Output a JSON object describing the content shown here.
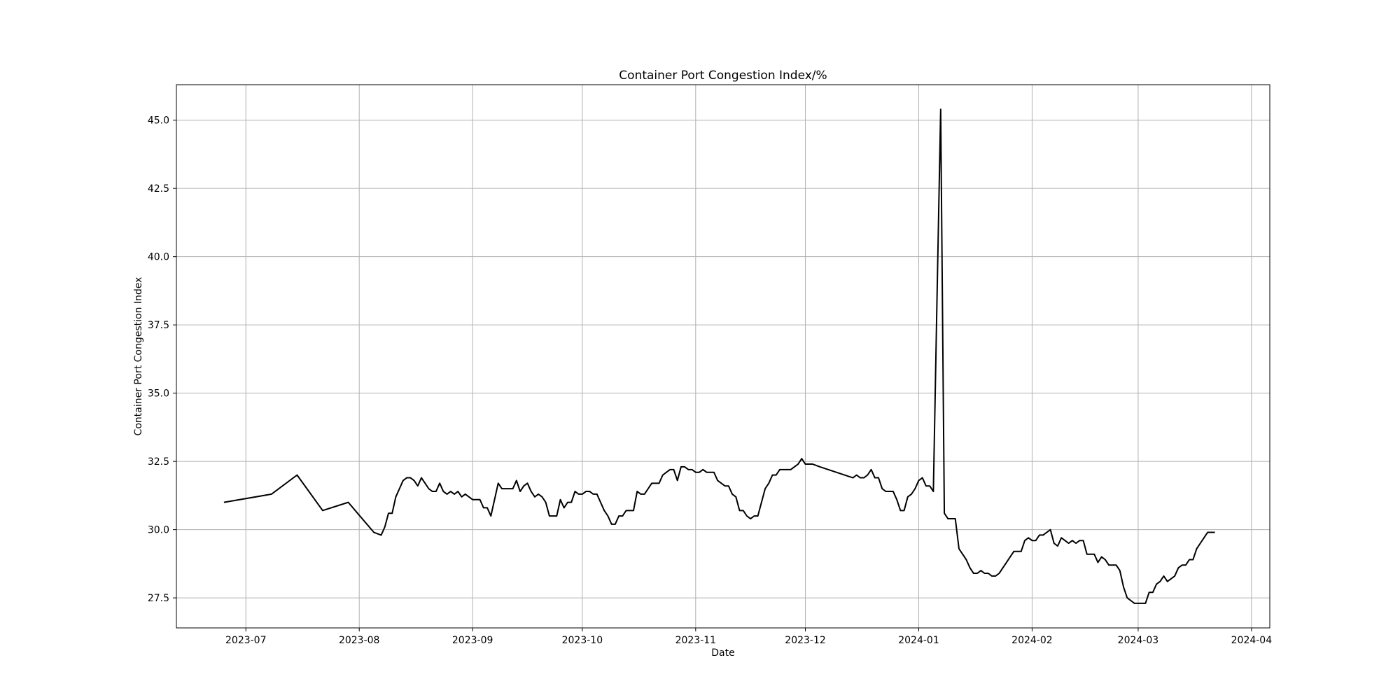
{
  "chart_data": {
    "type": "line",
    "title": "Container Port Congestion Index/%",
    "xlabel": "Date",
    "ylabel": "Container Port Congestion Index",
    "grid": true,
    "xlim": [
      "2023-06-12",
      "2024-04-06"
    ],
    "ylim": [
      26.4,
      46.3
    ],
    "x_ticks": [
      "2023-07",
      "2023-08",
      "2023-09",
      "2023-10",
      "2023-11",
      "2023-12",
      "2024-01",
      "2024-02",
      "2024-03",
      "2024-04"
    ],
    "y_ticks": [
      "27.5",
      "30.0",
      "32.5",
      "35.0",
      "37.5",
      "40.0",
      "42.5",
      "45.0"
    ],
    "line_color": "#000000",
    "series": [
      {
        "x": [
          "2023-06-25",
          "2023-07-08",
          "2023-07-15",
          "2023-07-22",
          "2023-07-29",
          "2023-08-05",
          "2023-08-07",
          "2023-08-08",
          "2023-08-09",
          "2023-08-10",
          "2023-08-11",
          "2023-08-12",
          "2023-08-13",
          "2023-08-14",
          "2023-08-15",
          "2023-08-16",
          "2023-08-17",
          "2023-08-18",
          "2023-08-19",
          "2023-08-20",
          "2023-08-21",
          "2023-08-22",
          "2023-08-23",
          "2023-08-24",
          "2023-08-25",
          "2023-08-26",
          "2023-08-27",
          "2023-08-28",
          "2023-08-29",
          "2023-08-30",
          "2023-08-31",
          "2023-09-01",
          "2023-09-02",
          "2023-09-03",
          "2023-09-04",
          "2023-09-05",
          "2023-09-06",
          "2023-09-07",
          "2023-09-08",
          "2023-09-09",
          "2023-09-10",
          "2023-09-11",
          "2023-09-12",
          "2023-09-13",
          "2023-09-14",
          "2023-09-15",
          "2023-09-16",
          "2023-09-17",
          "2023-09-18",
          "2023-09-19",
          "2023-09-20",
          "2023-09-21",
          "2023-09-22",
          "2023-09-23",
          "2023-09-24",
          "2023-09-25",
          "2023-09-26",
          "2023-09-27",
          "2023-09-28",
          "2023-09-29",
          "2023-09-30",
          "2023-10-01",
          "2023-10-02",
          "2023-10-03",
          "2023-10-04",
          "2023-10-05",
          "2023-10-06",
          "2023-10-07",
          "2023-10-08",
          "2023-10-09",
          "2023-10-10",
          "2023-10-11",
          "2023-10-12",
          "2023-10-13",
          "2023-10-14",
          "2023-10-15",
          "2023-10-16",
          "2023-10-17",
          "2023-10-18",
          "2023-10-19",
          "2023-10-20",
          "2023-10-21",
          "2023-10-22",
          "2023-10-23",
          "2023-10-24",
          "2023-10-25",
          "2023-10-26",
          "2023-10-27",
          "2023-10-28",
          "2023-10-29",
          "2023-10-30",
          "2023-10-31",
          "2023-11-01",
          "2023-11-02",
          "2023-11-03",
          "2023-11-04",
          "2023-11-05",
          "2023-11-06",
          "2023-11-07",
          "2023-11-08",
          "2023-11-09",
          "2023-11-10",
          "2023-11-11",
          "2023-11-12",
          "2023-11-13",
          "2023-11-14",
          "2023-11-15",
          "2023-11-16",
          "2023-11-17",
          "2023-11-18",
          "2023-11-19",
          "2023-11-20",
          "2023-11-21",
          "2023-11-22",
          "2023-11-23",
          "2023-11-24",
          "2023-11-25",
          "2023-11-26",
          "2023-11-27",
          "2023-11-28",
          "2023-11-29",
          "2023-11-30",
          "2023-12-01",
          "2023-12-02",
          "2023-12-03",
          "2023-12-05",
          "2023-12-14",
          "2023-12-15",
          "2023-12-16",
          "2023-12-17",
          "2023-12-18",
          "2023-12-19",
          "2023-12-20",
          "2023-12-21",
          "2023-12-22",
          "2023-12-23",
          "2023-12-24",
          "2023-12-25",
          "2023-12-26",
          "2023-12-27",
          "2023-12-28",
          "2023-12-29",
          "2023-12-30",
          "2023-12-31",
          "2024-01-01",
          "2024-01-02",
          "2024-01-03",
          "2024-01-04",
          "2024-01-05",
          "2024-01-06",
          "2024-01-07",
          "2024-01-08",
          "2024-01-09",
          "2024-01-10",
          "2024-01-11",
          "2024-01-12",
          "2024-01-13",
          "2024-01-14",
          "2024-01-15",
          "2024-01-16",
          "2024-01-17",
          "2024-01-18",
          "2024-01-19",
          "2024-01-20",
          "2024-01-21",
          "2024-01-22",
          "2024-01-23",
          "2024-01-24",
          "2024-01-25",
          "2024-01-26",
          "2024-01-27",
          "2024-01-28",
          "2024-01-29",
          "2024-01-30",
          "2024-01-31",
          "2024-02-01",
          "2024-02-02",
          "2024-02-03",
          "2024-02-04",
          "2024-02-05",
          "2024-02-06",
          "2024-02-07",
          "2024-02-08",
          "2024-02-09",
          "2024-02-10",
          "2024-02-11",
          "2024-02-12",
          "2024-02-13",
          "2024-02-14",
          "2024-02-15",
          "2024-02-16",
          "2024-02-17",
          "2024-02-18",
          "2024-02-19",
          "2024-02-20",
          "2024-02-21",
          "2024-02-22",
          "2024-02-23",
          "2024-02-24",
          "2024-02-25",
          "2024-02-26",
          "2024-02-27",
          "2024-02-28",
          "2024-02-29",
          "2024-03-01",
          "2024-03-02",
          "2024-03-03",
          "2024-03-04",
          "2024-03-05",
          "2024-03-06",
          "2024-03-07",
          "2024-03-08",
          "2024-03-09",
          "2024-03-10",
          "2024-03-11",
          "2024-03-12",
          "2024-03-13",
          "2024-03-14",
          "2024-03-15",
          "2024-03-16",
          "2024-03-17",
          "2024-03-18",
          "2024-03-19",
          "2024-03-20",
          "2024-03-21",
          "2024-03-22"
        ],
        "values": [
          31.0,
          31.3,
          32.0,
          30.7,
          31.0,
          29.9,
          29.8,
          30.1,
          30.6,
          30.6,
          31.2,
          31.5,
          31.8,
          31.9,
          31.9,
          31.8,
          31.6,
          31.9,
          31.7,
          31.5,
          31.4,
          31.4,
          31.7,
          31.4,
          31.3,
          31.4,
          31.3,
          31.4,
          31.2,
          31.3,
          31.2,
          31.1,
          31.1,
          31.1,
          30.8,
          30.8,
          30.5,
          31.1,
          31.7,
          31.5,
          31.5,
          31.5,
          31.5,
          31.8,
          31.4,
          31.6,
          31.7,
          31.4,
          31.2,
          31.3,
          31.2,
          31.0,
          30.5,
          30.5,
          30.5,
          31.1,
          30.8,
          31.0,
          31.0,
          31.4,
          31.3,
          31.3,
          31.4,
          31.4,
          31.3,
          31.3,
          31.0,
          30.7,
          30.5,
          30.2,
          30.2,
          30.5,
          30.5,
          30.7,
          30.7,
          30.7,
          31.4,
          31.3,
          31.3,
          31.5,
          31.7,
          31.7,
          31.7,
          32.0,
          32.1,
          32.2,
          32.2,
          31.8,
          32.3,
          32.3,
          32.2,
          32.2,
          32.1,
          32.1,
          32.2,
          32.1,
          32.1,
          32.1,
          31.8,
          31.7,
          31.6,
          31.6,
          31.3,
          31.2,
          30.7,
          30.7,
          30.5,
          30.4,
          30.5,
          30.5,
          31.0,
          31.5,
          31.7,
          32.0,
          32.0,
          32.2,
          32.2,
          32.2,
          32.2,
          32.3,
          32.4,
          32.6,
          32.4,
          32.4,
          32.4,
          32.3,
          31.9,
          32.0,
          31.9,
          31.9,
          32.0,
          32.2,
          31.9,
          31.9,
          31.5,
          31.4,
          31.4,
          31.4,
          31.1,
          30.7,
          30.7,
          31.2,
          31.3,
          31.5,
          31.8,
          31.9,
          31.6,
          31.6,
          31.4,
          38.5,
          45.4,
          30.6,
          30.4,
          30.4,
          30.4,
          29.3,
          29.1,
          28.9,
          28.6,
          28.4,
          28.4,
          28.5,
          28.4,
          28.4,
          28.3,
          28.3,
          28.4,
          28.6,
          28.8,
          29.0,
          29.2,
          29.2,
          29.2,
          29.6,
          29.7,
          29.6,
          29.6,
          29.8,
          29.8,
          29.9,
          30.0,
          29.5,
          29.4,
          29.7,
          29.6,
          29.5,
          29.6,
          29.5,
          29.6,
          29.6,
          29.1,
          29.1,
          29.1,
          28.8,
          29.0,
          28.9,
          28.7,
          28.7,
          28.7,
          28.5,
          27.9,
          27.5,
          27.4,
          27.3,
          27.3,
          27.3,
          27.3,
          27.7,
          27.7,
          28.0,
          28.1,
          28.3,
          28.1,
          28.2,
          28.3,
          28.6,
          28.7,
          28.7,
          28.9,
          28.9,
          29.3,
          29.5,
          29.7,
          29.9,
          29.9,
          29.9
        ]
      }
    ]
  }
}
